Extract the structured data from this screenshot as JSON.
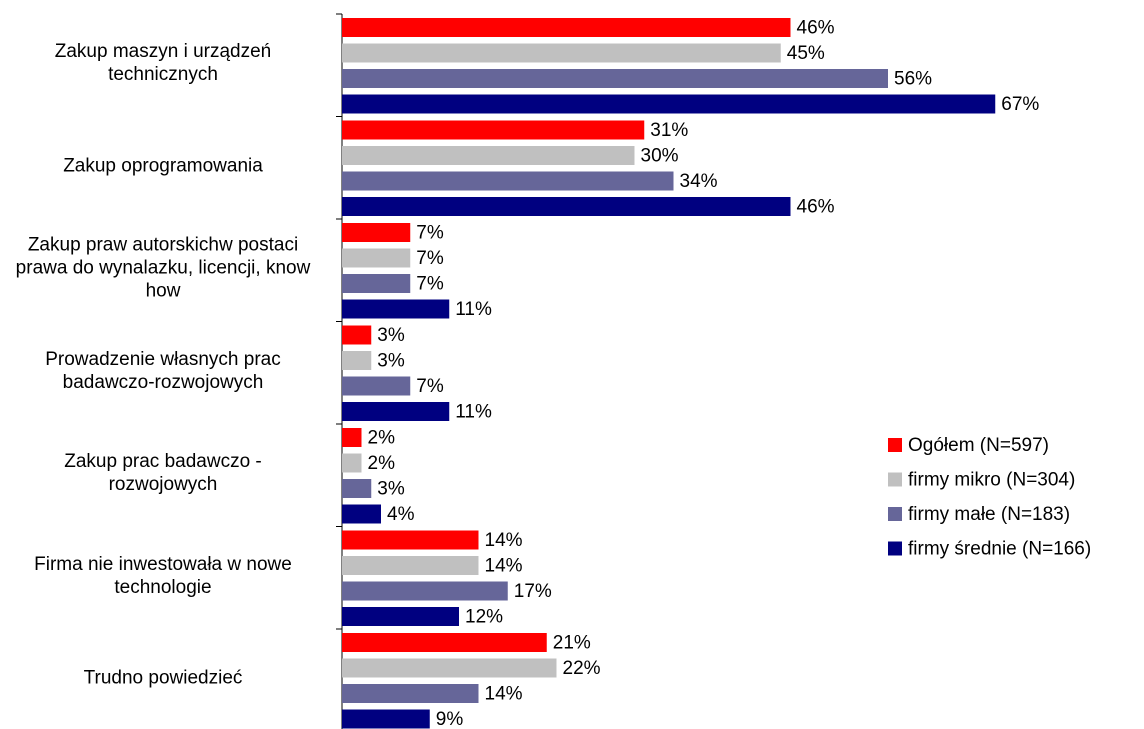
{
  "chart_data": {
    "type": "hbar",
    "categories": [
      "Zakup maszyn i urządzeń technicznych",
      "Zakup oprogramowania",
      "Zakup praw autorskichw postaci prawa do wynalazku, licencji, know how",
      "Prowadzenie własnych prac badawczo-rozwojowych",
      "Zakup prac badawczo - rozwojowych",
      "Firma nie inwestowała w nowe technologie",
      "Trudno powiedzieć"
    ],
    "series": [
      {
        "name": "Ogółem (N=597)",
        "color": "#ff0000",
        "values": [
          46,
          31,
          7,
          3,
          2,
          14,
          21
        ],
        "value_labels": [
          "46%",
          "31%",
          "7%",
          "3%",
          "2%",
          "14%",
          "21%"
        ]
      },
      {
        "name": "firmy mikro (N=304)",
        "color": "#c0c0c0",
        "values": [
          45,
          30,
          7,
          3,
          2,
          14,
          22
        ],
        "value_labels": [
          "45%",
          "30%",
          "7%",
          "3%",
          "2%",
          "14%",
          "22%"
        ]
      },
      {
        "name": "firmy małe (N=183)",
        "color": "#666699",
        "values": [
          56,
          34,
          7,
          7,
          3,
          17,
          14
        ],
        "value_labels": [
          "56%",
          "34%",
          "7%",
          "7%",
          "3%",
          "17%",
          "14%"
        ]
      },
      {
        "name": "firmy średnie (N=166)",
        "color": "#000080",
        "values": [
          67,
          46,
          11,
          11,
          4,
          12,
          9
        ],
        "value_labels": [
          "67%",
          "46%",
          "11%",
          "11%",
          "4%",
          "12%",
          "9%"
        ]
      }
    ],
    "legend": "right"
  }
}
